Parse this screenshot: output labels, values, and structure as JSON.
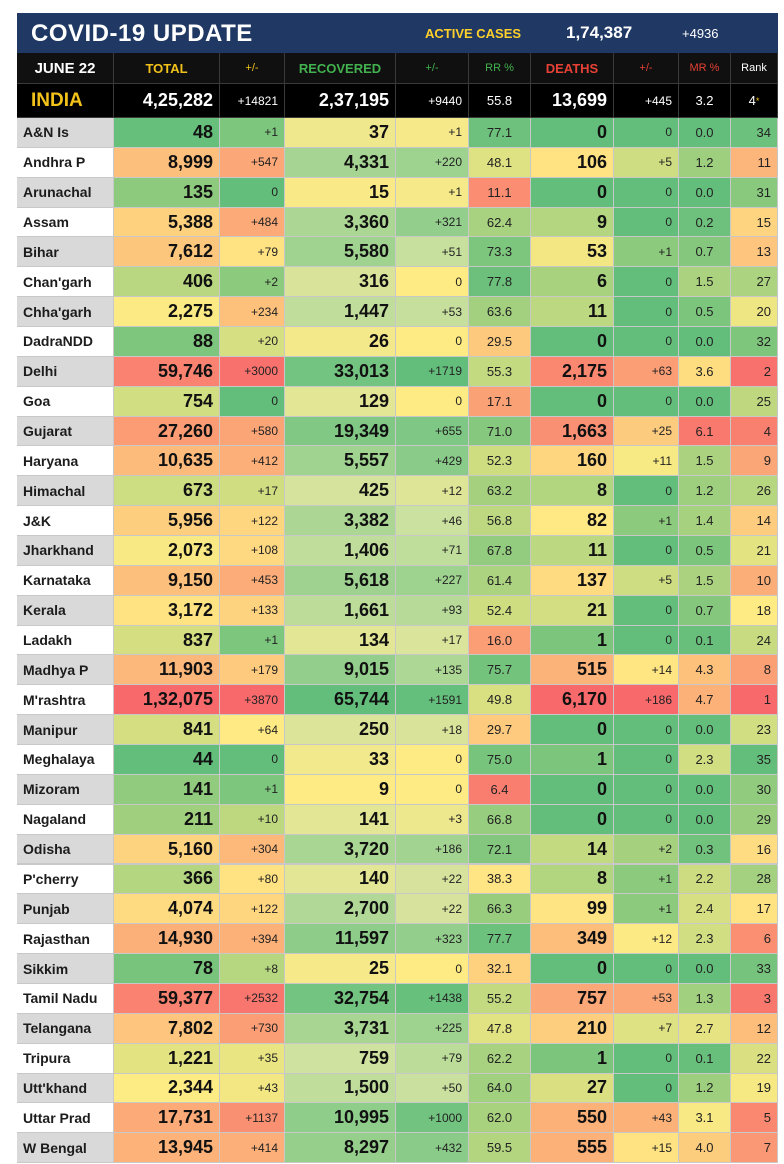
{
  "header": {
    "title": "COVID-19 UPDATE",
    "active_label": "ACTIVE CASES",
    "active_value": "1,74,387",
    "active_delta": "+4936"
  },
  "columns": {
    "date": "JUNE 22",
    "total": "TOTAL",
    "total_delta": "+/-",
    "recovered": "RECOVERED",
    "recovered_delta": "+/-",
    "rr": "RR %",
    "deaths": "DEATHS",
    "deaths_delta": "+/-",
    "mr": "MR %",
    "rank": "Rank"
  },
  "india": {
    "name": "INDIA",
    "total": "4,25,282",
    "total_delta": "+14821",
    "recovered": "2,37,195",
    "recovered_delta": "+9440",
    "rr": "55.8",
    "deaths": "13,699",
    "deaths_delta": "+445",
    "mr": "3.2",
    "rank": "4",
    "rank_mark": "*"
  },
  "colors": {
    "red": "#f8696b",
    "orange": "#fbaa77",
    "yellow": "#ffeb84",
    "green": "#63be7b",
    "name_shaded": "#d9d9d9",
    "name_plain": "#ffffff"
  },
  "states": [
    {
      "name": "A&N Is",
      "total": "48",
      "td": "+1",
      "rec": "37",
      "rd": "+1",
      "rr": "77.1",
      "deaths": "0",
      "dd": "0",
      "mr": "0.0",
      "rank": "34"
    },
    {
      "name": "Andhra P",
      "total": "8,999",
      "td": "+547",
      "rec": "4,331",
      "rd": "+220",
      "rr": "48.1",
      "deaths": "106",
      "dd": "+5",
      "mr": "1.2",
      "rank": "11"
    },
    {
      "name": "Arunachal",
      "total": "135",
      "td": "0",
      "rec": "15",
      "rd": "+1",
      "rr": "11.1",
      "deaths": "0",
      "dd": "0",
      "mr": "0.0",
      "rank": "31"
    },
    {
      "name": "Assam",
      "total": "5,388",
      "td": "+484",
      "rec": "3,360",
      "rd": "+321",
      "rr": "62.4",
      "deaths": "9",
      "dd": "0",
      "mr": "0.2",
      "rank": "15"
    },
    {
      "name": "Bihar",
      "total": "7,612",
      "td": "+79",
      "rec": "5,580",
      "rd": "+51",
      "rr": "73.3",
      "deaths": "53",
      "dd": "+1",
      "mr": "0.7",
      "rank": "13"
    },
    {
      "name": "Chan'garh",
      "total": "406",
      "td": "+2",
      "rec": "316",
      "rd": "0",
      "rr": "77.8",
      "deaths": "6",
      "dd": "0",
      "mr": "1.5",
      "rank": "27"
    },
    {
      "name": "Chha'garh",
      "total": "2,275",
      "td": "+234",
      "rec": "1,447",
      "rd": "+53",
      "rr": "63.6",
      "deaths": "11",
      "dd": "0",
      "mr": "0.5",
      "rank": "20"
    },
    {
      "name": "DadraNDD",
      "total": "88",
      "td": "+20",
      "rec": "26",
      "rd": "0",
      "rr": "29.5",
      "deaths": "0",
      "dd": "0",
      "mr": "0.0",
      "rank": "32"
    },
    {
      "name": "Delhi",
      "total": "59,746",
      "td": "+3000",
      "rec": "33,013",
      "rd": "+1719",
      "rr": "55.3",
      "deaths": "2,175",
      "dd": "+63",
      "mr": "3.6",
      "rank": "2"
    },
    {
      "name": "Goa",
      "total": "754",
      "td": "0",
      "rec": "129",
      "rd": "0",
      "rr": "17.1",
      "deaths": "0",
      "dd": "0",
      "mr": "0.0",
      "rank": "25"
    },
    {
      "name": "Gujarat",
      "total": "27,260",
      "td": "+580",
      "rec": "19,349",
      "rd": "+655",
      "rr": "71.0",
      "deaths": "1,663",
      "dd": "+25",
      "mr": "6.1",
      "rank": "4"
    },
    {
      "name": "Haryana",
      "total": "10,635",
      "td": "+412",
      "rec": "5,557",
      "rd": "+429",
      "rr": "52.3",
      "deaths": "160",
      "dd": "+11",
      "mr": "1.5",
      "rank": "9"
    },
    {
      "name": "Himachal",
      "total": "673",
      "td": "+17",
      "rec": "425",
      "rd": "+12",
      "rr": "63.2",
      "deaths": "8",
      "dd": "0",
      "mr": "1.2",
      "rank": "26"
    },
    {
      "name": "J&K",
      "total": "5,956",
      "td": "+122",
      "rec": "3,382",
      "rd": "+46",
      "rr": "56.8",
      "deaths": "82",
      "dd": "+1",
      "mr": "1.4",
      "rank": "14"
    },
    {
      "name": "Jharkhand",
      "total": "2,073",
      "td": "+108",
      "rec": "1,406",
      "rd": "+71",
      "rr": "67.8",
      "deaths": "11",
      "dd": "0",
      "mr": "0.5",
      "rank": "21"
    },
    {
      "name": "Karnataka",
      "total": "9,150",
      "td": "+453",
      "rec": "5,618",
      "rd": "+227",
      "rr": "61.4",
      "deaths": "137",
      "dd": "+5",
      "mr": "1.5",
      "rank": "10"
    },
    {
      "name": "Kerala",
      "total": "3,172",
      "td": "+133",
      "rec": "1,661",
      "rd": "+93",
      "rr": "52.4",
      "deaths": "21",
      "dd": "0",
      "mr": "0.7",
      "rank": "18"
    },
    {
      "name": "Ladakh",
      "total": "837",
      "td": "+1",
      "rec": "134",
      "rd": "+17",
      "rr": "16.0",
      "deaths": "1",
      "dd": "0",
      "mr": "0.1",
      "rank": "24"
    },
    {
      "name": "Madhya P",
      "total": "11,903",
      "td": "+179",
      "rec": "9,015",
      "rd": "+135",
      "rr": "75.7",
      "deaths": "515",
      "dd": "+14",
      "mr": "4.3",
      "rank": "8"
    },
    {
      "name": "M'rashtra",
      "total": "1,32,075",
      "td": "+3870",
      "rec": "65,744",
      "rd": "+1591",
      "rr": "49.8",
      "deaths": "6,170",
      "dd": "+186",
      "mr": "4.7",
      "rank": "1"
    },
    {
      "name": "Manipur",
      "total": "841",
      "td": "+64",
      "rec": "250",
      "rd": "+18",
      "rr": "29.7",
      "deaths": "0",
      "dd": "0",
      "mr": "0.0",
      "rank": "23"
    },
    {
      "name": "Meghalaya",
      "total": "44",
      "td": "0",
      "rec": "33",
      "rd": "0",
      "rr": "75.0",
      "deaths": "1",
      "dd": "0",
      "mr": "2.3",
      "rank": "35"
    },
    {
      "name": "Mizoram",
      "total": "141",
      "td": "+1",
      "rec": "9",
      "rd": "0",
      "rr": "6.4",
      "deaths": "0",
      "dd": "0",
      "mr": "0.0",
      "rank": "30"
    },
    {
      "name": "Nagaland",
      "total": "211",
      "td": "+10",
      "rec": "141",
      "rd": "+3",
      "rr": "66.8",
      "deaths": "0",
      "dd": "0",
      "mr": "0.0",
      "rank": "29"
    },
    {
      "name": "Odisha",
      "total": "5,160",
      "td": "+304",
      "rec": "3,720",
      "rd": "+186",
      "rr": "72.1",
      "deaths": "14",
      "dd": "+2",
      "mr": "0.3",
      "rank": "16"
    },
    {
      "name": "P'cherry",
      "total": "366",
      "td": "+80",
      "rec": "140",
      "rd": "+22",
      "rr": "38.3",
      "deaths": "8",
      "dd": "+1",
      "mr": "2.2",
      "rank": "28"
    },
    {
      "name": "Punjab",
      "total": "4,074",
      "td": "+122",
      "rec": "2,700",
      "rd": "+22",
      "rr": "66.3",
      "deaths": "99",
      "dd": "+1",
      "mr": "2.4",
      "rank": "17"
    },
    {
      "name": "Rajasthan",
      "total": "14,930",
      "td": "+394",
      "rec": "11,597",
      "rd": "+323",
      "rr": "77.7",
      "deaths": "349",
      "dd": "+12",
      "mr": "2.3",
      "rank": "6"
    },
    {
      "name": "Sikkim",
      "total": "78",
      "td": "+8",
      "rec": "25",
      "rd": "0",
      "rr": "32.1",
      "deaths": "0",
      "dd": "0",
      "mr": "0.0",
      "rank": "33"
    },
    {
      "name": "Tamil Nadu",
      "total": "59,377",
      "td": "+2532",
      "rec": "32,754",
      "rd": "+1438",
      "rr": "55.2",
      "deaths": "757",
      "dd": "+53",
      "mr": "1.3",
      "rank": "3"
    },
    {
      "name": "Telangana",
      "total": "7,802",
      "td": "+730",
      "rec": "3,731",
      "rd": "+225",
      "rr": "47.8",
      "deaths": "210",
      "dd": "+7",
      "mr": "2.7",
      "rank": "12"
    },
    {
      "name": "Tripura",
      "total": "1,221",
      "td": "+35",
      "rec": "759",
      "rd": "+79",
      "rr": "62.2",
      "deaths": "1",
      "dd": "0",
      "mr": "0.1",
      "rank": "22"
    },
    {
      "name": "Utt'khand",
      "total": "2,344",
      "td": "+43",
      "rec": "1,500",
      "rd": "+50",
      "rr": "64.0",
      "deaths": "27",
      "dd": "0",
      "mr": "1.2",
      "rank": "19"
    },
    {
      "name": "Uttar Prad",
      "total": "17,731",
      "td": "+1137",
      "rec": "10,995",
      "rd": "+1000",
      "rr": "62.0",
      "deaths": "550",
      "dd": "+43",
      "mr": "3.1",
      "rank": "5"
    },
    {
      "name": "W Bengal",
      "total": "13,945",
      "td": "+414",
      "rec": "8,297",
      "rd": "+432",
      "rr": "59.5",
      "deaths": "555",
      "dd": "+15",
      "mr": "4.0",
      "rank": "7"
    }
  ]
}
